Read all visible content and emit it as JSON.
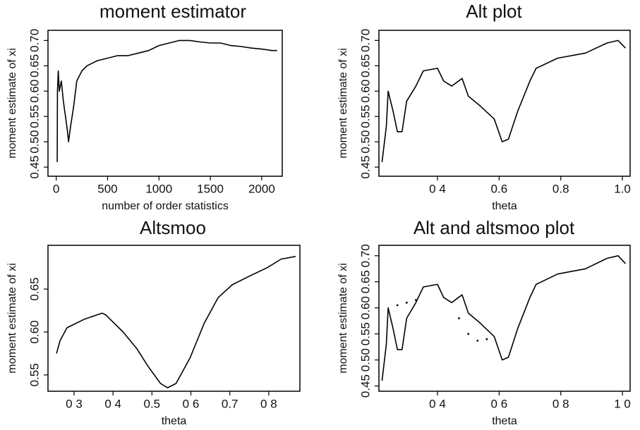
{
  "chart_data": [
    {
      "type": "line",
      "title": "moment estimator",
      "xlabel": "number of order statistics",
      "ylabel": "moment estimate of xi",
      "xlim": [
        -80,
        2200
      ],
      "ylim": [
        0.432,
        0.72
      ],
      "xticks": [
        0,
        500,
        1000,
        1500,
        2000
      ],
      "yticks": [
        0.45,
        {
          "value": 0.5,
          "label": "0.50"
        },
        0.55,
        {
          "value": 0.6,
          "label": "0.60"
        },
        0.65,
        {
          "value": 0.7,
          "label": "0.70"
        }
      ],
      "series": [
        {
          "color": "#000000",
          "style": "solid",
          "x": [
            10,
            12,
            20,
            30,
            50,
            70,
            90,
            110,
            120,
            140,
            170,
            200,
            250,
            300,
            400,
            500,
            600,
            700,
            800,
            900,
            1000,
            1100,
            1200,
            1300,
            1400,
            1500,
            1600,
            1700,
            1800,
            1900,
            2000,
            2100,
            2150
          ],
          "values": [
            0.46,
            0.6,
            0.64,
            0.6,
            0.62,
            0.58,
            0.55,
            0.52,
            0.5,
            0.53,
            0.57,
            0.62,
            0.64,
            0.65,
            0.66,
            0.665,
            0.67,
            0.67,
            0.675,
            0.68,
            0.69,
            0.695,
            0.7,
            0.7,
            0.697,
            0.695,
            0.695,
            0.69,
            0.688,
            0.685,
            0.683,
            0.68,
            0.68
          ]
        }
      ]
    },
    {
      "type": "line",
      "title": "Alt plot",
      "xlabel": "theta",
      "ylabel": "moment estimate of xi",
      "xlim": [
        0.21,
        1.025
      ],
      "ylim": [
        0.432,
        0.72
      ],
      "xticks": [
        {
          "value": 0.4,
          "label": "0 4"
        },
        0.6,
        0.8,
        {
          "value": 1.0,
          "label": "1.0"
        }
      ],
      "yticks": [
        0.45,
        {
          "value": 0.5,
          "label": "0.50"
        },
        0.55,
        {
          "value": 0.6,
          "label": "0.60"
        },
        0.65,
        {
          "value": 0.7,
          "label": "0.70"
        }
      ],
      "series": [
        {
          "color": "#000000",
          "style": "solid",
          "x": [
            0.22,
            0.234,
            0.24,
            0.256,
            0.27,
            0.285,
            0.3,
            0.33,
            0.354,
            0.4,
            0.42,
            0.446,
            0.48,
            0.5,
            0.54,
            0.584,
            0.61,
            0.63,
            0.66,
            0.7,
            0.72,
            0.79,
            0.88,
            0.95,
            0.986,
            1.01
          ],
          "values": [
            0.46,
            0.53,
            0.6,
            0.56,
            0.52,
            0.52,
            0.58,
            0.61,
            0.64,
            0.645,
            0.62,
            0.61,
            0.625,
            0.59,
            0.57,
            0.545,
            0.5,
            0.505,
            0.56,
            0.62,
            0.645,
            0.665,
            0.675,
            0.695,
            0.7,
            0.685
          ]
        }
      ]
    },
    {
      "type": "line",
      "title": "Altsmoo",
      "xlabel": "theta",
      "ylabel": "moment estimate of xi",
      "xlim": [
        0.233,
        0.88
      ],
      "ylim": [
        0.531,
        0.701
      ],
      "xticks": [
        {
          "value": 0.3,
          "label": "0 3"
        },
        {
          "value": 0.4,
          "label": "0 4"
        },
        0.5,
        {
          "value": 0.6,
          "label": "0 6"
        },
        0.7,
        {
          "value": 0.8,
          "label": "0 8"
        }
      ],
      "yticks": [
        0.55,
        {
          "value": 0.6,
          "label": "0.60"
        },
        0.65
      ],
      "series": [
        {
          "color": "#000000",
          "style": "solid",
          "x": [
            0.255,
            0.264,
            0.282,
            0.327,
            0.372,
            0.381,
            0.426,
            0.462,
            0.49,
            0.522,
            0.54,
            0.562,
            0.598,
            0.634,
            0.67,
            0.706,
            0.75,
            0.796,
            0.832,
            0.869
          ],
          "values": [
            0.575,
            0.59,
            0.605,
            0.615,
            0.622,
            0.62,
            0.6,
            0.58,
            0.56,
            0.54,
            0.535,
            0.54,
            0.57,
            0.61,
            0.64,
            0.655,
            0.665,
            0.675,
            0.685,
            0.688
          ]
        }
      ]
    },
    {
      "type": "line",
      "title": "Alt and altsmoo plot",
      "xlabel": "theta",
      "ylabel": "moment estimate of xi",
      "xlim": [
        0.21,
        1.025
      ],
      "ylim": [
        0.44,
        0.72
      ],
      "xticks": [
        {
          "value": 0.4,
          "label": "0 4"
        },
        {
          "value": 0.6,
          "label": "0 6"
        },
        {
          "value": 0.8,
          "label": "0 8"
        },
        {
          "value": 1.0,
          "label": "1 0"
        }
      ],
      "yticks": [
        0.45,
        {
          "value": 0.5,
          "label": "0.50"
        },
        0.55,
        {
          "value": 0.6,
          "label": "0.60"
        },
        0.65,
        {
          "value": 0.7,
          "label": "0.70"
        }
      ],
      "series": [
        {
          "color": "#000000",
          "style": "solid",
          "x": [
            0.22,
            0.234,
            0.24,
            0.256,
            0.27,
            0.285,
            0.3,
            0.33,
            0.354,
            0.4,
            0.42,
            0.446,
            0.48,
            0.5,
            0.54,
            0.584,
            0.61,
            0.63,
            0.66,
            0.7,
            0.72,
            0.79,
            0.88,
            0.95,
            0.986,
            1.01
          ],
          "values": [
            0.46,
            0.53,
            0.6,
            0.56,
            0.52,
            0.52,
            0.58,
            0.61,
            0.64,
            0.645,
            0.62,
            0.61,
            0.625,
            0.59,
            0.57,
            0.545,
            0.5,
            0.505,
            0.56,
            0.62,
            0.645,
            0.665,
            0.675,
            0.695,
            0.7,
            0.685
          ]
        },
        {
          "color": "#000000",
          "style": "dotted",
          "x": [
            0.27,
            0.3,
            0.33,
            0.47,
            0.5,
            0.53,
            0.56
          ],
          "values": [
            0.605,
            0.61,
            0.615,
            0.58,
            0.55,
            0.537,
            0.54
          ]
        }
      ]
    }
  ]
}
